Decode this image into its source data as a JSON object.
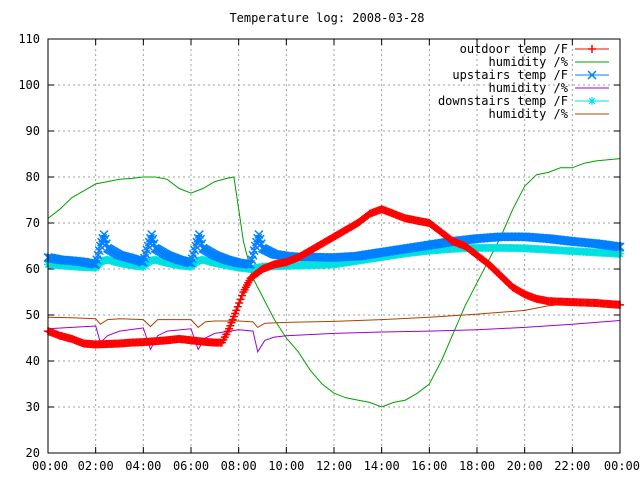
{
  "chart_data": {
    "type": "line",
    "title": "Temperature log: 2008-03-28",
    "xlabel": "",
    "ylabel": "",
    "xlim": [
      0,
      24
    ],
    "ylim": [
      20,
      110
    ],
    "grid": true,
    "legend_position": "top-right",
    "x_tick_labels": [
      "00:00",
      "02:00",
      "04:00",
      "06:00",
      "08:00",
      "10:00",
      "12:00",
      "14:00",
      "16:00",
      "18:00",
      "20:00",
      "22:00",
      "00:00"
    ],
    "y_tick_labels": [
      "20",
      "30",
      "40",
      "50",
      "60",
      "70",
      "80",
      "90",
      "100",
      "110"
    ],
    "series": [
      {
        "name": "outdoor temp /F",
        "color": "#ff0000",
        "marker": "plus",
        "points": [
          [
            0,
            46.5
          ],
          [
            0.5,
            45.5
          ],
          [
            1,
            44.8
          ],
          [
            1.5,
            43.8
          ],
          [
            2,
            43.6
          ],
          [
            2.5,
            43.7
          ],
          [
            3,
            43.8
          ],
          [
            3.5,
            44
          ],
          [
            4,
            44.1
          ],
          [
            4.5,
            44.3
          ],
          [
            5,
            44.5
          ],
          [
            5.5,
            44.8
          ],
          [
            6,
            44.5
          ],
          [
            6.5,
            44.2
          ],
          [
            7,
            44
          ],
          [
            7.3,
            44
          ],
          [
            7.6,
            47
          ],
          [
            7.9,
            51
          ],
          [
            8.2,
            55
          ],
          [
            8.5,
            58
          ],
          [
            9,
            60
          ],
          [
            9.5,
            61
          ],
          [
            10,
            61.5
          ],
          [
            10.5,
            62.5
          ],
          [
            11,
            64
          ],
          [
            11.5,
            65.5
          ],
          [
            12,
            67
          ],
          [
            12.5,
            68.5
          ],
          [
            13,
            70
          ],
          [
            13.5,
            72
          ],
          [
            14,
            73
          ],
          [
            14.5,
            72
          ],
          [
            15,
            71
          ],
          [
            15.5,
            70.5
          ],
          [
            16,
            70
          ],
          [
            16.5,
            68
          ],
          [
            17,
            66
          ],
          [
            17.5,
            65
          ],
          [
            18,
            63
          ],
          [
            18.5,
            61
          ],
          [
            19,
            58.5
          ],
          [
            19.5,
            56
          ],
          [
            20,
            54.5
          ],
          [
            20.5,
            53.5
          ],
          [
            21,
            53
          ],
          [
            22,
            52.8
          ],
          [
            23,
            52.6
          ],
          [
            24,
            52.2
          ]
        ]
      },
      {
        "name": "humidity /%",
        "color": "#00a000",
        "marker": "none",
        "points": [
          [
            0,
            71
          ],
          [
            0.5,
            73
          ],
          [
            1,
            75.5
          ],
          [
            1.5,
            77
          ],
          [
            2,
            78.5
          ],
          [
            2.5,
            79
          ],
          [
            3,
            79.5
          ],
          [
            3.5,
            79.7
          ],
          [
            4,
            80
          ],
          [
            4.5,
            80
          ],
          [
            5,
            79.5
          ],
          [
            5.5,
            77.5
          ],
          [
            6,
            76.5
          ],
          [
            6.5,
            77.5
          ],
          [
            7,
            79
          ],
          [
            7.5,
            79.7
          ],
          [
            7.8,
            80
          ],
          [
            8,
            73
          ],
          [
            8.2,
            66
          ],
          [
            8.4,
            62
          ],
          [
            8.6,
            58
          ],
          [
            8.8,
            56
          ],
          [
            9,
            54
          ],
          [
            9.5,
            49
          ],
          [
            10,
            45
          ],
          [
            10.5,
            42
          ],
          [
            11,
            38
          ],
          [
            11.5,
            35
          ],
          [
            12,
            33
          ],
          [
            12.5,
            32
          ],
          [
            13,
            31.5
          ],
          [
            13.5,
            31
          ],
          [
            14,
            30
          ],
          [
            14.5,
            31
          ],
          [
            15,
            31.5
          ],
          [
            15.5,
            33
          ],
          [
            16,
            35
          ],
          [
            16.5,
            40
          ],
          [
            17,
            46
          ],
          [
            17.5,
            52
          ],
          [
            18,
            57
          ],
          [
            18.5,
            62
          ],
          [
            19,
            67
          ],
          [
            19.5,
            73
          ],
          [
            20,
            78
          ],
          [
            20.5,
            80.5
          ],
          [
            21,
            81
          ],
          [
            21.5,
            82
          ],
          [
            22,
            82
          ],
          [
            22.5,
            83
          ],
          [
            23,
            83.5
          ],
          [
            24,
            84
          ]
        ]
      },
      {
        "name": "upstairs temp /F",
        "color": "#0080ff",
        "marker": "x",
        "points": [
          [
            0,
            62.5
          ],
          [
            0.5,
            62
          ],
          [
            1,
            61.8
          ],
          [
            1.5,
            61.5
          ],
          [
            2,
            61
          ],
          [
            2.2,
            65
          ],
          [
            2.35,
            67.5
          ],
          [
            2.5,
            64.5
          ],
          [
            3,
            63
          ],
          [
            3.5,
            62.3
          ],
          [
            4,
            61.5
          ],
          [
            4.2,
            65
          ],
          [
            4.35,
            67.5
          ],
          [
            4.5,
            64.5
          ],
          [
            5,
            63
          ],
          [
            5.5,
            62
          ],
          [
            6,
            61.3
          ],
          [
            6.2,
            65
          ],
          [
            6.35,
            67.5
          ],
          [
            6.5,
            64.5
          ],
          [
            7,
            63
          ],
          [
            7.5,
            62
          ],
          [
            8,
            61.3
          ],
          [
            8.5,
            61
          ],
          [
            8.7,
            65
          ],
          [
            8.85,
            67.5
          ],
          [
            9,
            64.5
          ],
          [
            9.5,
            63.2
          ],
          [
            10,
            62.8
          ],
          [
            10.5,
            62.6
          ],
          [
            11,
            62.6
          ],
          [
            12,
            62.5
          ],
          [
            13,
            62.8
          ],
          [
            14,
            63.6
          ],
          [
            15,
            64.4
          ],
          [
            16,
            65.2
          ],
          [
            17,
            66
          ],
          [
            18,
            66.6
          ],
          [
            19,
            67
          ],
          [
            20,
            67
          ],
          [
            21,
            66.6
          ],
          [
            22,
            66
          ],
          [
            23,
            65.5
          ],
          [
            24,
            64.8
          ]
        ]
      },
      {
        "name": "humidity /%",
        "color": "#a000d0",
        "marker": "none",
        "points": [
          [
            0,
            47
          ],
          [
            1,
            47.3
          ],
          [
            2,
            47.6
          ],
          [
            2.2,
            44
          ],
          [
            2.5,
            45.5
          ],
          [
            3,
            46.5
          ],
          [
            4,
            47.2
          ],
          [
            4.3,
            42.5
          ],
          [
            4.6,
            45.5
          ],
          [
            5,
            46.5
          ],
          [
            6,
            47
          ],
          [
            6.3,
            42.5
          ],
          [
            6.6,
            45
          ],
          [
            7,
            46
          ],
          [
            8,
            46.8
          ],
          [
            8.6,
            46.5
          ],
          [
            8.8,
            42
          ],
          [
            9.1,
            44.5
          ],
          [
            9.5,
            45.2
          ],
          [
            10,
            45.5
          ],
          [
            12,
            46
          ],
          [
            14,
            46.3
          ],
          [
            16,
            46.5
          ],
          [
            18,
            46.8
          ],
          [
            20,
            47.3
          ],
          [
            22,
            48
          ],
          [
            24,
            48.8
          ]
        ]
      },
      {
        "name": "downstairs temp /F",
        "color": "#00e0e0",
        "marker": "star",
        "points": [
          [
            0,
            61
          ],
          [
            0.5,
            60.8
          ],
          [
            1,
            60.6
          ],
          [
            1.5,
            60.4
          ],
          [
            2,
            60.3
          ],
          [
            2.3,
            61.8
          ],
          [
            2.5,
            62
          ],
          [
            3,
            61.3
          ],
          [
            3.5,
            60.8
          ],
          [
            4,
            60.5
          ],
          [
            4.3,
            61.8
          ],
          [
            4.5,
            62
          ],
          [
            5,
            61.3
          ],
          [
            5.5,
            60.8
          ],
          [
            6,
            60.5
          ],
          [
            6.3,
            61.8
          ],
          [
            6.5,
            62
          ],
          [
            7,
            61.3
          ],
          [
            7.5,
            60.8
          ],
          [
            8,
            60.3
          ],
          [
            8.5,
            60
          ],
          [
            9,
            60.5
          ],
          [
            10,
            60.7
          ],
          [
            11,
            60.8
          ],
          [
            12,
            61
          ],
          [
            13,
            61.8
          ],
          [
            14,
            62.6
          ],
          [
            15,
            63.4
          ],
          [
            16,
            64
          ],
          [
            17,
            64.4
          ],
          [
            18,
            64.6
          ],
          [
            19,
            64.6
          ],
          [
            20,
            64.5
          ],
          [
            21,
            64.2
          ],
          [
            22,
            63.9
          ],
          [
            23,
            63.6
          ],
          [
            24,
            63.3
          ]
        ]
      },
      {
        "name": "humidity /%",
        "color": "#b04000",
        "marker": "none",
        "points": [
          [
            0,
            49.5
          ],
          [
            1,
            49.4
          ],
          [
            2,
            49.2
          ],
          [
            2.2,
            48
          ],
          [
            2.5,
            49
          ],
          [
            3,
            49.2
          ],
          [
            4,
            49
          ],
          [
            4.3,
            47.5
          ],
          [
            4.6,
            49
          ],
          [
            5,
            49
          ],
          [
            6,
            49
          ],
          [
            6.3,
            47.3
          ],
          [
            6.6,
            48.5
          ],
          [
            7,
            48.7
          ],
          [
            8,
            48.7
          ],
          [
            8.6,
            48.5
          ],
          [
            8.8,
            47.3
          ],
          [
            9.1,
            48.2
          ],
          [
            10,
            48.4
          ],
          [
            12,
            48.6
          ],
          [
            14,
            49
          ],
          [
            16,
            49.5
          ],
          [
            18,
            50.2
          ],
          [
            20,
            51
          ],
          [
            21,
            52
          ],
          [
            22,
            52.5
          ],
          [
            24,
            53
          ]
        ]
      }
    ]
  }
}
